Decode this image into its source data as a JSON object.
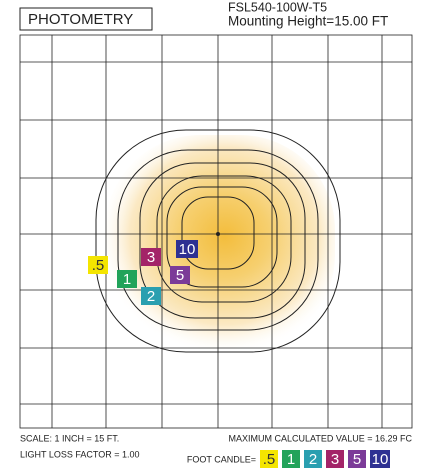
{
  "header": {
    "title": "PHOTOMETRY",
    "model": "FSL540-100W-T5",
    "mounting": "Mounting Height=15.00 FT"
  },
  "contours": [
    {
      "label": ".5",
      "color": "#f4e500",
      "text_color": "#333"
    },
    {
      "label": "1",
      "color": "#22a35a",
      "text_color": "#fff"
    },
    {
      "label": "2",
      "color": "#2a9fb0",
      "text_color": "#fff"
    },
    {
      "label": "3",
      "color": "#a32468",
      "text_color": "#fff"
    },
    {
      "label": "5",
      "color": "#7b3b98",
      "text_color": "#fff"
    },
    {
      "label": "10",
      "color": "#2e3192",
      "text_color": "#fff"
    }
  ],
  "footer": {
    "scale": "SCALE: 1 INCH = 15 FT.",
    "llf": "LIGHT LOSS FACTOR = 1.00",
    "max": "MAXIMUM CALCULATED VALUE = 16.29 FC",
    "legend_title": "FOOT CANDLE="
  }
}
